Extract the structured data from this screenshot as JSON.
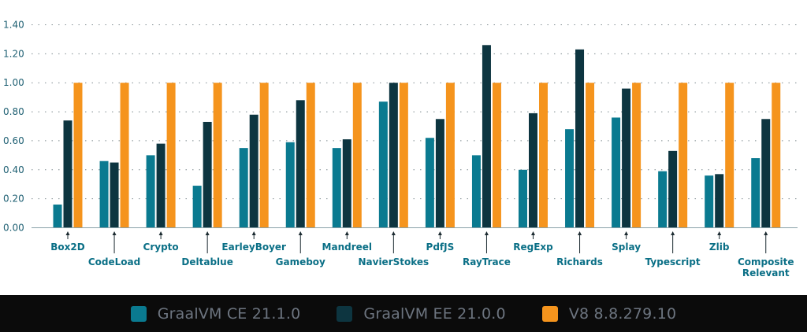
{
  "chart_data": {
    "type": "bar",
    "title": "",
    "xlabel": "",
    "ylabel": "",
    "ylim": [
      0,
      1.4
    ],
    "yticks": [
      "0.00",
      "0.20",
      "0.40",
      "0.60",
      "0.80",
      "1.00",
      "1.20",
      "1.40"
    ],
    "grid": "horizontal-dotted",
    "categories": [
      [
        "Box2D"
      ],
      [
        "CodeLoad"
      ],
      [
        "Crypto"
      ],
      [
        "Deltablue"
      ],
      [
        "EarleyBoyer"
      ],
      [
        "Gameboy"
      ],
      [
        "Mandreel"
      ],
      [
        "NavierStokes"
      ],
      [
        "PdfJS"
      ],
      [
        "RayTrace"
      ],
      [
        "RegExp"
      ],
      [
        "Richards"
      ],
      [
        "Splay"
      ],
      [
        "Typescript"
      ],
      [
        "Zlib"
      ],
      [
        "Composite",
        "Relevant"
      ]
    ],
    "series": [
      {
        "name": "GraalVM CE 21.1.0",
        "color": "#0a7a90",
        "values": [
          0.16,
          0.46,
          0.5,
          0.29,
          0.55,
          0.59,
          0.55,
          0.87,
          0.62,
          0.5,
          0.4,
          0.68,
          0.76,
          0.39,
          0.36,
          0.48
        ]
      },
      {
        "name": "GraalVM EE 21.0.0",
        "color": "#0d3540",
        "values": [
          0.74,
          0.45,
          0.58,
          0.73,
          0.78,
          0.88,
          0.61,
          1.0,
          0.75,
          1.26,
          0.79,
          1.23,
          0.96,
          0.53,
          0.37,
          0.75
        ]
      },
      {
        "name": "V8 8.8.279.10",
        "color": "#f5941d",
        "values": [
          1.0,
          1.0,
          1.0,
          1.0,
          1.0,
          1.0,
          1.0,
          1.0,
          1.0,
          1.0,
          1.0,
          1.0,
          1.0,
          1.0,
          1.0,
          1.0
        ]
      }
    ],
    "legend": "bottom",
    "label_color": "#0a6f86",
    "tick_color": "#1f6073"
  }
}
